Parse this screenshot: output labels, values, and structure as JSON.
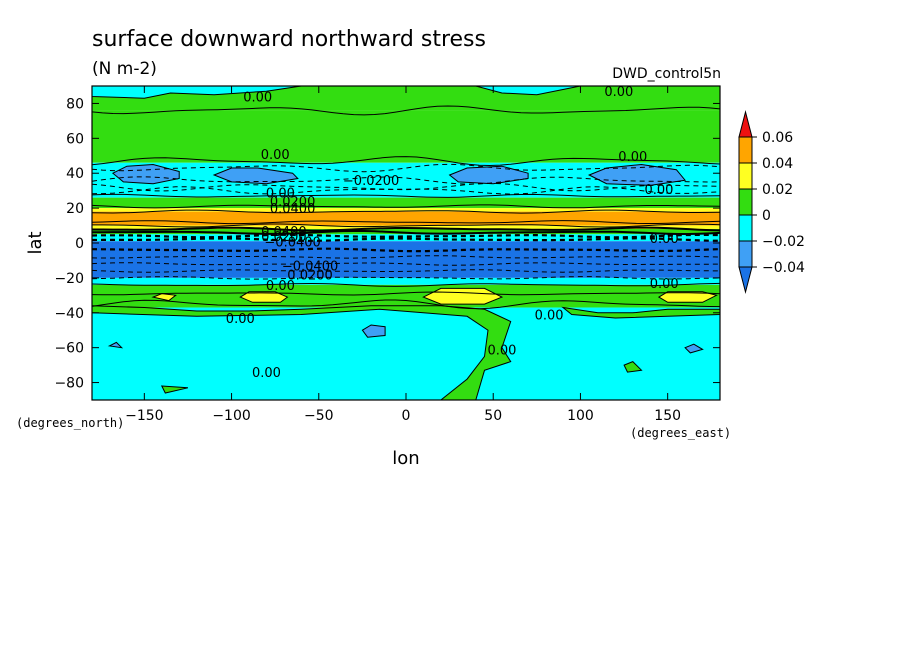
{
  "chart_data": {
    "type": "contour_map",
    "title": "surface downward northward stress",
    "units": "(N m-2)",
    "run_label": "DWD_control5n",
    "xlabel": "lon",
    "ylabel": "lat",
    "x_units": "(degrees_east)",
    "y_units": "(degrees_north)",
    "xlim": [
      -180,
      180
    ],
    "ylim": [
      -90,
      90
    ],
    "x_ticks": [
      -150,
      -100,
      -50,
      0,
      50,
      100,
      150
    ],
    "x_tick_labels": [
      "−150",
      "−100",
      "−50",
      "0",
      "50",
      "100",
      "150"
    ],
    "y_ticks": [
      80,
      60,
      40,
      20,
      0,
      -20,
      -40,
      -60,
      -80
    ],
    "y_tick_labels": [
      "80",
      "60",
      "40",
      "20",
      "0",
      "−20",
      "−40",
      "−60",
      "−80"
    ],
    "colorbar": {
      "levels": [
        -0.04,
        -0.02,
        0,
        0.02,
        0.04,
        0.06
      ],
      "labels": [
        "−0.04",
        "−0.02",
        "0",
        "0.02",
        "0.04",
        "0.06"
      ],
      "colors": [
        "#1a73e6",
        "#3fa0f5",
        "#00ffff",
        "#33dd11",
        "#ffff22",
        "#ffa500",
        "#ee1111"
      ]
    },
    "zonal_bands": [
      {
        "lat_from": 90,
        "lat_to": 76,
        "value": 0.005
      },
      {
        "lat_from": 76,
        "lat_to": 46,
        "value": 0.01
      },
      {
        "lat_from": 46,
        "lat_to": 26,
        "value": -0.01
      },
      {
        "lat_from": 26,
        "lat_to": 20,
        "value": 0.01
      },
      {
        "lat_from": 20,
        "lat_to": 18,
        "value": 0.03
      },
      {
        "lat_from": 18,
        "lat_to": 10,
        "value": 0.045
      },
      {
        "lat_from": 10,
        "lat_to": 8,
        "value": 0.03
      },
      {
        "lat_from": 8,
        "lat_to": 5,
        "value": 0.01
      },
      {
        "lat_from": 5,
        "lat_to": 1,
        "value": -0.01
      },
      {
        "lat_from": 1,
        "lat_to": -20,
        "value": -0.05
      },
      {
        "lat_from": -20,
        "lat_to": -24,
        "value": -0.01
      },
      {
        "lat_from": -24,
        "lat_to": -37,
        "value": 0.01
      },
      {
        "lat_from": -37,
        "lat_to": -90,
        "value": -0.01
      }
    ],
    "regions": [
      {
        "value": -0.01,
        "points": [
          [
            -180,
            90
          ],
          [
            -180,
            84
          ],
          [
            -150,
            83
          ],
          [
            -135,
            86
          ],
          [
            -110,
            85
          ],
          [
            -80,
            87
          ],
          [
            -60,
            90
          ]
        ]
      },
      {
        "value": -0.01,
        "points": [
          [
            40,
            90
          ],
          [
            55,
            86
          ],
          [
            75,
            85
          ],
          [
            90,
            88
          ],
          [
            100,
            90
          ]
        ]
      },
      {
        "value": -0.03,
        "points": [
          [
            -168,
            40
          ],
          [
            -160,
            44
          ],
          [
            -145,
            45
          ],
          [
            -130,
            41
          ],
          [
            -130,
            37
          ],
          [
            -145,
            34
          ],
          [
            -162,
            35
          ]
        ]
      },
      {
        "value": -0.03,
        "points": [
          [
            -110,
            39
          ],
          [
            -100,
            43
          ],
          [
            -85,
            43
          ],
          [
            -65,
            40
          ],
          [
            -62,
            37
          ],
          [
            -80,
            34
          ],
          [
            -100,
            35
          ]
        ]
      },
      {
        "value": -0.03,
        "points": [
          [
            25,
            39
          ],
          [
            35,
            43
          ],
          [
            55,
            44
          ],
          [
            70,
            40
          ],
          [
            70,
            37
          ],
          [
            50,
            34
          ],
          [
            30,
            35
          ]
        ]
      },
      {
        "value": -0.03,
        "points": [
          [
            105,
            39
          ],
          [
            115,
            43
          ],
          [
            135,
            45
          ],
          [
            155,
            42
          ],
          [
            160,
            36
          ],
          [
            140,
            33
          ],
          [
            115,
            34
          ]
        ]
      },
      {
        "value": 0.03,
        "points": [
          [
            -95,
            -31
          ],
          [
            -90,
            -28
          ],
          [
            -75,
            -28
          ],
          [
            -68,
            -31
          ],
          [
            -72,
            -34
          ],
          [
            -88,
            -34
          ]
        ]
      },
      {
        "value": 0.03,
        "points": [
          [
            10,
            -31
          ],
          [
            20,
            -26
          ],
          [
            45,
            -26
          ],
          [
            55,
            -31
          ],
          [
            45,
            -35
          ],
          [
            20,
            -35
          ]
        ]
      },
      {
        "value": 0.03,
        "points": [
          [
            145,
            -31
          ],
          [
            150,
            -28
          ],
          [
            170,
            -28
          ],
          [
            178,
            -30
          ],
          [
            170,
            -34
          ],
          [
            150,
            -34
          ]
        ]
      },
      {
        "value": 0.03,
        "points": [
          [
            -145,
            -31
          ],
          [
            -140,
            -29
          ],
          [
            -132,
            -30
          ],
          [
            -136,
            -33
          ]
        ]
      },
      {
        "value": 0.01,
        "points": [
          [
            -180,
            -36
          ],
          [
            -150,
            -37
          ],
          [
            -120,
            -39
          ],
          [
            -90,
            -39
          ],
          [
            -60,
            -38
          ],
          [
            -20,
            -36
          ],
          [
            20,
            -36
          ],
          [
            45,
            -38
          ],
          [
            60,
            -45
          ],
          [
            55,
            -60
          ],
          [
            60,
            -68
          ],
          [
            45,
            -73
          ],
          [
            40,
            -90
          ],
          [
            20,
            -90
          ],
          [
            35,
            -78
          ],
          [
            45,
            -65
          ],
          [
            47,
            -50
          ],
          [
            35,
            -42
          ],
          [
            10,
            -40
          ],
          [
            -15,
            -38
          ],
          [
            -60,
            -41
          ],
          [
            -120,
            -42
          ],
          [
            -180,
            -40
          ]
        ]
      },
      {
        "value": 0.01,
        "points": [
          [
            90,
            -37
          ],
          [
            110,
            -40
          ],
          [
            130,
            -40
          ],
          [
            150,
            -38
          ],
          [
            180,
            -38
          ],
          [
            180,
            -41
          ],
          [
            150,
            -42
          ],
          [
            120,
            -43
          ],
          [
            95,
            -41
          ]
        ]
      },
      {
        "value": 0.01,
        "points": [
          [
            -140,
            -82
          ],
          [
            -125,
            -83
          ],
          [
            -138,
            -86
          ]
        ]
      },
      {
        "value": 0.01,
        "points": [
          [
            125,
            -70
          ],
          [
            130,
            -68
          ],
          [
            135,
            -73
          ],
          [
            127,
            -74
          ]
        ]
      },
      {
        "value": -0.03,
        "points": [
          [
            -25,
            -50
          ],
          [
            -20,
            -47
          ],
          [
            -12,
            -48
          ],
          [
            -12,
            -53
          ],
          [
            -22,
            -54
          ]
        ]
      },
      {
        "value": -0.03,
        "points": [
          [
            -170,
            -59
          ],
          [
            -166,
            -57
          ],
          [
            -163,
            -60
          ]
        ]
      },
      {
        "value": -0.03,
        "points": [
          [
            160,
            -60
          ],
          [
            165,
            -58
          ],
          [
            170,
            -61
          ],
          [
            163,
            -63
          ]
        ]
      }
    ],
    "contour_labels": [
      {
        "text": "0.00",
        "lon": -85,
        "lat": 84
      },
      {
        "text": "0.00",
        "lon": 122,
        "lat": 87
      },
      {
        "text": "0.00",
        "lon": -75,
        "lat": 51
      },
      {
        "text": "0.00",
        "lon": 130,
        "lat": 50
      },
      {
        "text": "−0.0200",
        "lon": -20,
        "lat": 36
      },
      {
        "text": "0.00",
        "lon": 145,
        "lat": 31
      },
      {
        "text": "0.00",
        "lon": -72,
        "lat": 29
      },
      {
        "text": "0.0200",
        "lon": -65,
        "lat": 24
      },
      {
        "text": "0.0400",
        "lon": -65,
        "lat": 20
      },
      {
        "text": "0.0400",
        "lon": -70,
        "lat": 7
      },
      {
        "text": "0.0200",
        "lon": -70,
        "lat": 4
      },
      {
        "text": "−0.0400",
        "lon": -65,
        "lat": 1
      },
      {
        "text": "0.00",
        "lon": 148,
        "lat": 3
      },
      {
        "text": "−0.0400",
        "lon": -55,
        "lat": -13
      },
      {
        "text": "0.0200",
        "lon": -55,
        "lat": -18
      },
      {
        "text": "0.00",
        "lon": -72,
        "lat": -24
      },
      {
        "text": "0.00",
        "lon": 148,
        "lat": -23
      },
      {
        "text": "0.00",
        "lon": -95,
        "lat": -43
      },
      {
        "text": "0.00",
        "lon": 82,
        "lat": -41
      },
      {
        "text": "0.00",
        "lon": 55,
        "lat": -61
      },
      {
        "text": "0.00",
        "lon": -80,
        "lat": -74
      }
    ],
    "dashed_contours_lat": [
      43,
      36,
      32,
      30,
      4,
      2,
      -4,
      -8,
      -12,
      -16,
      -20
    ],
    "solid_contours_lat": [
      76,
      47,
      27,
      21,
      18,
      12,
      10,
      8,
      6,
      -24,
      -29,
      -35
    ]
  }
}
